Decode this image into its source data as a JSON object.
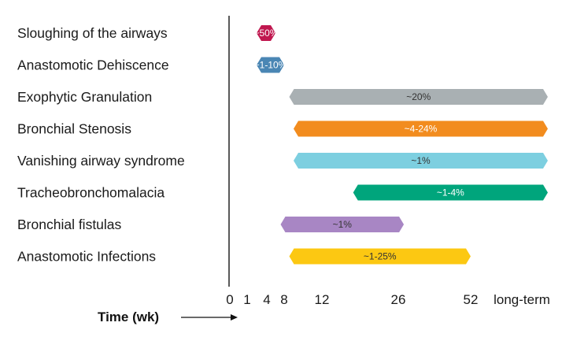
{
  "chart_data": {
    "type": "bar",
    "orientation": "horizontal-range",
    "xlabel": "Time (wk)",
    "x_ticks": [
      "0",
      "1",
      "4",
      "8",
      "12",
      "26",
      "52",
      "long-term"
    ],
    "categories": [
      "Sloughing of the airways",
      "Anastomotic Dehiscence",
      "Exophytic Granulation",
      "Bronchial Stenosis",
      "Vanishing airway syndrome",
      "Tracheobronchomalacia",
      "Bronchial fistulas",
      "Anastomotic Infections"
    ],
    "bars": [
      {
        "category": "Sloughing of the airways",
        "start": "1",
        "end": "~6",
        "label": "~50%",
        "color": "#c0174f",
        "label_color": "#ffffff"
      },
      {
        "category": "Anastomotic Dehiscence",
        "start": "1",
        "end": "~8",
        "label": "~1-10%",
        "color": "#4a86b4",
        "label_color": "#ffffff"
      },
      {
        "category": "Exophytic Granulation",
        "start": "~7",
        "end": "long-term",
        "label": "~20%",
        "color": "#a9b0b3",
        "label_color": "#333333"
      },
      {
        "category": "Bronchial Stenosis",
        "start": "8",
        "end": "long-term",
        "label": "~4-24%",
        "color": "#f28c1e",
        "label_color": "#ffffff"
      },
      {
        "category": "Vanishing airway syndrome",
        "start": "8",
        "end": "long-term",
        "label": "~1%",
        "color": "#7dcfe0",
        "label_color": "#333333"
      },
      {
        "category": "Tracheobronchomalacia",
        "start": "~16",
        "end": "long-term",
        "label": "~1-4%",
        "color": "#00a57c",
        "label_color": "#ffffff"
      },
      {
        "category": "Bronchial fistulas",
        "start": "~5",
        "end": "~28",
        "label": "~1%",
        "color": "#a886c4",
        "label_color": "#333333"
      },
      {
        "category": "Anastomotic Infections",
        "start": "~7",
        "end": "~52",
        "label": "~1-25%",
        "color": "#fcc812",
        "label_color": "#333333"
      }
    ]
  }
}
